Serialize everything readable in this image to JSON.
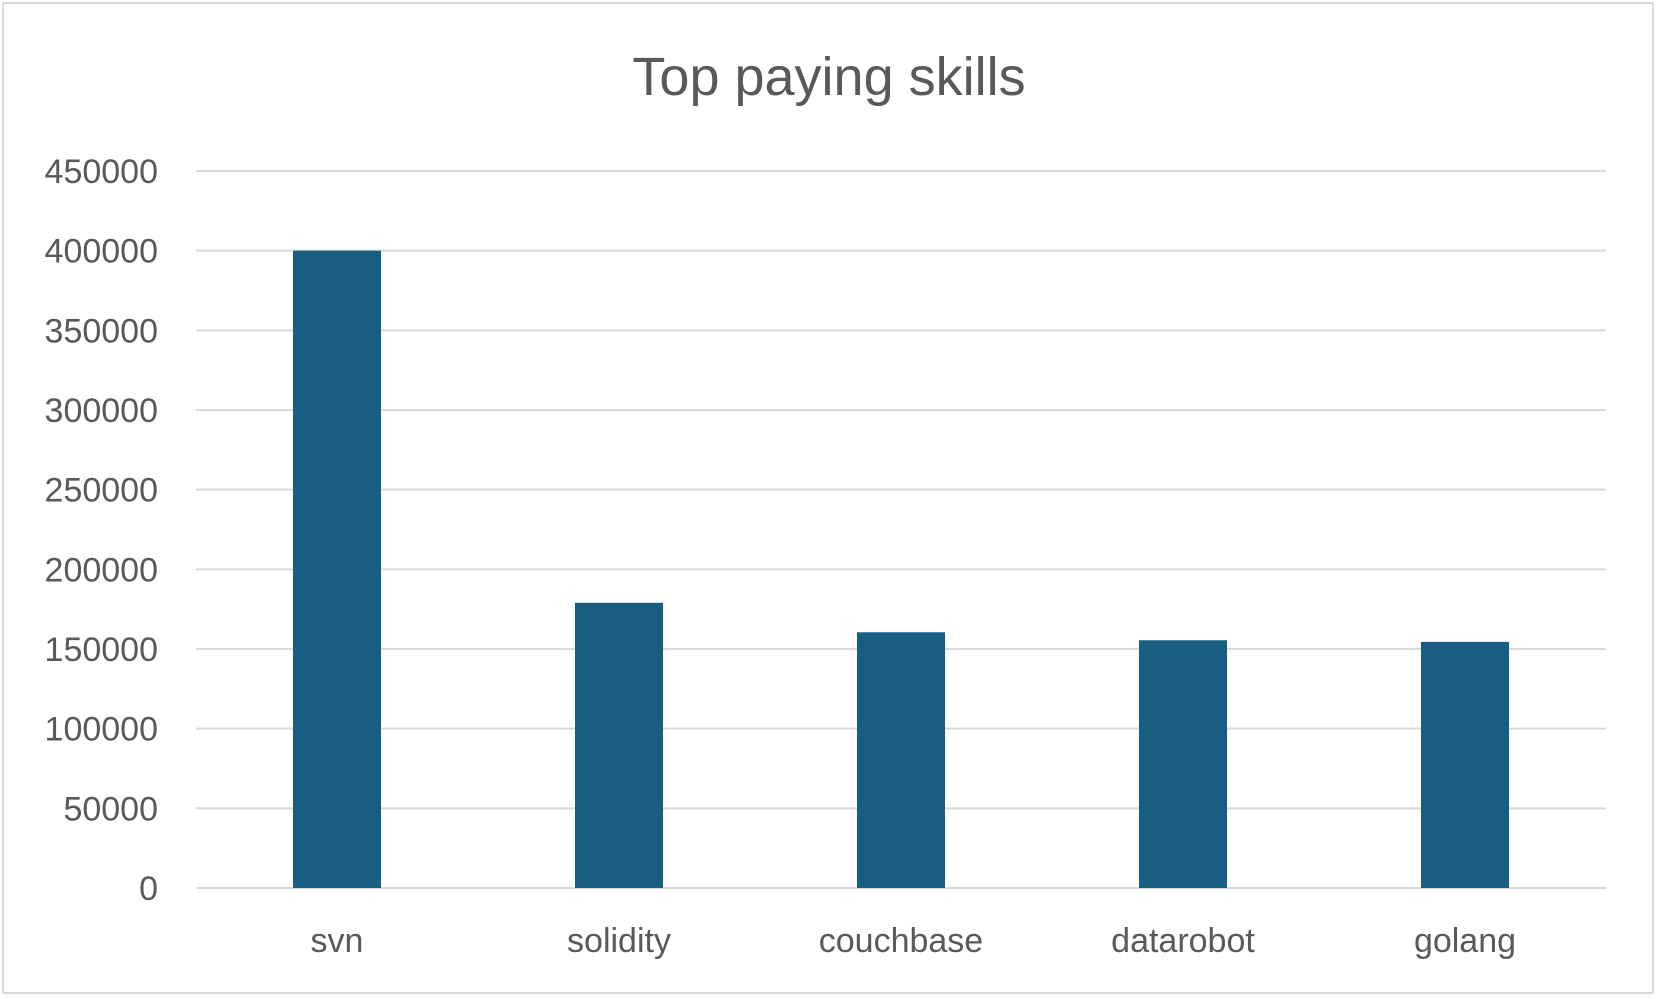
{
  "chart_data": {
    "type": "bar",
    "title": "Top paying skills",
    "xlabel": "",
    "ylabel": "",
    "categories": [
      "svn",
      "solidity",
      "couchbase",
      "datarobot",
      "golang"
    ],
    "values": [
      400000,
      179000,
      160500,
      155500,
      154500
    ],
    "ylim": [
      0,
      450000
    ],
    "yticks": [
      "0",
      "50000",
      "100000",
      "150000",
      "200000",
      "250000",
      "300000",
      "350000",
      "400000",
      "450000"
    ],
    "grid": true,
    "legend": "none",
    "bar_color": "#175e80"
  }
}
